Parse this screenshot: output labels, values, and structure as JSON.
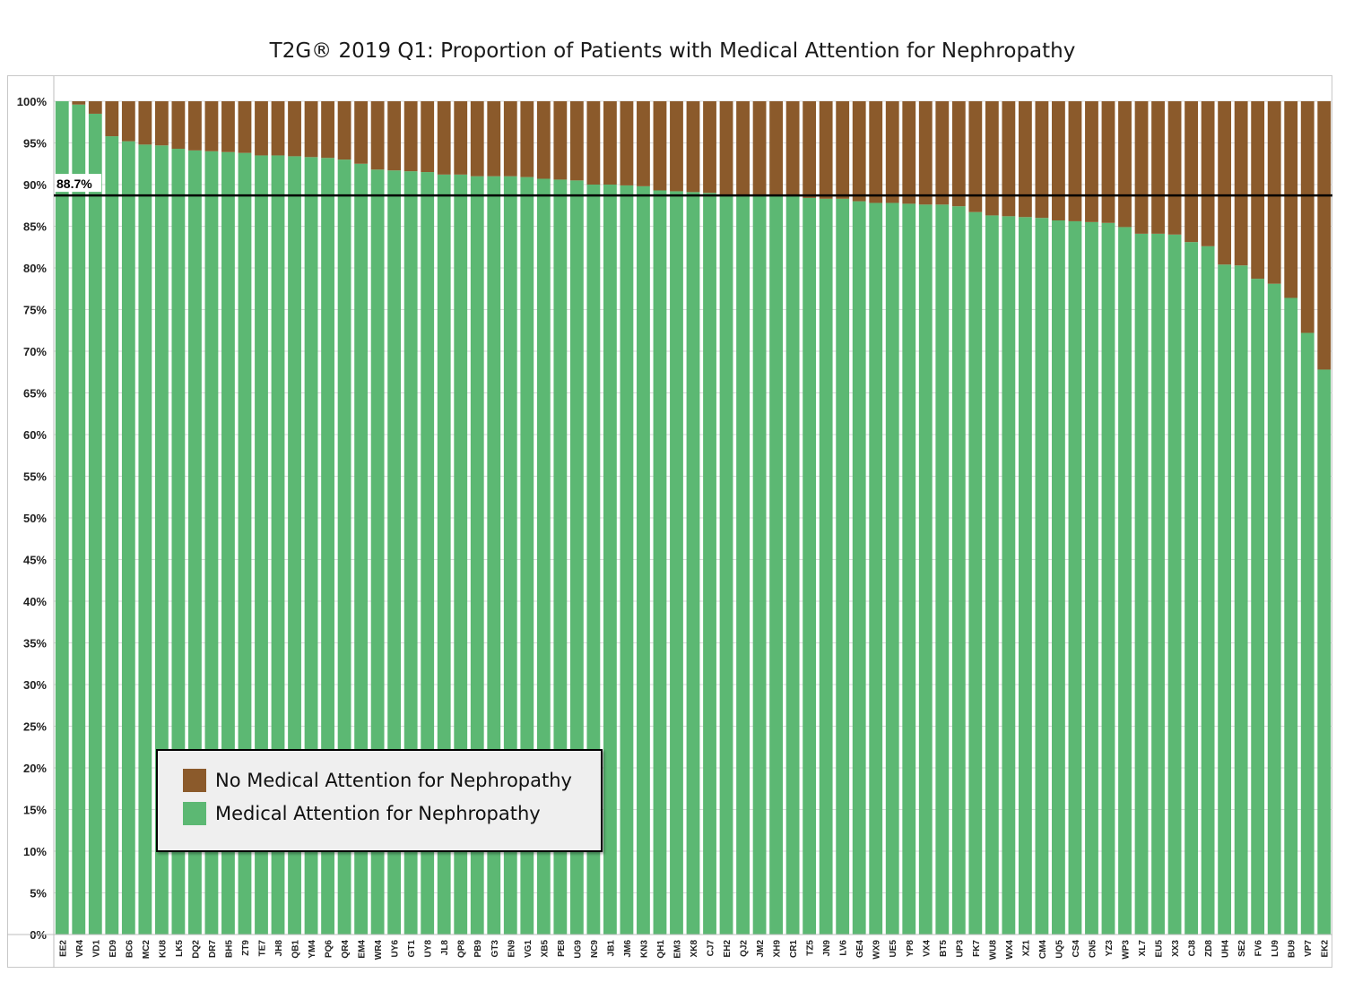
{
  "chart_data": {
    "type": "bar",
    "stacked": true,
    "title": "T2G® 2019 Q1: Proportion of Patients with Medical Attention for Nephropathy",
    "xlabel": "",
    "ylabel": "",
    "ylim": [
      0,
      100
    ],
    "y_ticks": [
      "0%",
      "5%",
      "10%",
      "15%",
      "20%",
      "25%",
      "30%",
      "35%",
      "40%",
      "45%",
      "50%",
      "55%",
      "60%",
      "65%",
      "70%",
      "75%",
      "80%",
      "85%",
      "90%",
      "95%",
      "100%"
    ],
    "grid": true,
    "legend_position": "bottom-left",
    "categories": [
      "EE2",
      "VR4",
      "VD1",
      "ED9",
      "BC6",
      "MC2",
      "KU8",
      "LK5",
      "DQ2",
      "DR7",
      "BH5",
      "ZT9",
      "TE7",
      "JH8",
      "QB1",
      "YM4",
      "PQ6",
      "QR4",
      "EM4",
      "WR4",
      "UY6",
      "GT1",
      "UY8",
      "JL8",
      "QP8",
      "PB9",
      "GT3",
      "EN9",
      "VG1",
      "XB5",
      "PE8",
      "UG9",
      "NC9",
      "JB1",
      "JM6",
      "KN3",
      "QH1",
      "EM3",
      "XK8",
      "CJ7",
      "EH2",
      "QJ2",
      "JM2",
      "XH9",
      "CR1",
      "TZ5",
      "JN9",
      "LV6",
      "GE4",
      "WX9",
      "UE5",
      "YP8",
      "VX4",
      "BT5",
      "UP3",
      "FK7",
      "WU8",
      "WX4",
      "XZ1",
      "CM4",
      "UQ5",
      "CS4",
      "CN5",
      "YZ3",
      "WP3",
      "XL7",
      "EU5",
      "XX3",
      "CJ8",
      "ZD8",
      "UH4",
      "SE2",
      "FV6",
      "LU9",
      "BU9",
      "VP7",
      "EK2"
    ],
    "series": [
      {
        "name": "Medical Attention for Nephropathy",
        "color": "#5cb873",
        "values": [
          100,
          99.6,
          98.5,
          95.8,
          95.2,
          94.8,
          94.7,
          94.3,
          94.1,
          94.0,
          93.9,
          93.8,
          93.5,
          93.5,
          93.4,
          93.3,
          93.2,
          93.0,
          92.5,
          91.8,
          91.7,
          91.6,
          91.5,
          91.2,
          91.2,
          91.0,
          91.0,
          91.0,
          90.9,
          90.7,
          90.6,
          90.5,
          90.0,
          90.0,
          89.9,
          89.8,
          89.3,
          89.2,
          89.1,
          89.0,
          88.7,
          88.7,
          88.7,
          88.6,
          88.6,
          88.4,
          88.3,
          88.3,
          88.0,
          87.8,
          87.8,
          87.7,
          87.6,
          87.6,
          87.4,
          86.7,
          86.3,
          86.2,
          86.1,
          86.0,
          85.7,
          85.6,
          85.5,
          85.4,
          84.9,
          84.1,
          84.1,
          84.0,
          83.1,
          82.6,
          80.4,
          80.3,
          78.7,
          78.1,
          76.4,
          72.2,
          67.8
        ]
      },
      {
        "name": "No Medical Attention for Nephropathy",
        "color": "#8b5a2b",
        "values": [
          0,
          0.4,
          1.5,
          4.2,
          4.8,
          5.2,
          5.3,
          5.7,
          5.9,
          6.0,
          6.1,
          6.2,
          6.5,
          6.5,
          6.6,
          6.7,
          6.8,
          7.0,
          7.5,
          8.2,
          8.3,
          8.4,
          8.5,
          8.8,
          8.8,
          9.0,
          9.0,
          9.0,
          9.1,
          9.3,
          9.4,
          9.5,
          10.0,
          10.0,
          10.1,
          10.2,
          10.7,
          10.8,
          10.9,
          11.0,
          11.3,
          11.3,
          11.3,
          11.4,
          11.4,
          11.6,
          11.7,
          11.7,
          12.0,
          12.2,
          12.2,
          12.3,
          12.4,
          12.4,
          12.6,
          13.3,
          13.7,
          13.8,
          13.9,
          14.0,
          14.3,
          14.4,
          14.5,
          14.6,
          15.1,
          15.9,
          15.9,
          16.0,
          16.9,
          17.4,
          19.6,
          19.7,
          21.3,
          21.9,
          23.6,
          27.8,
          32.2
        ]
      }
    ],
    "reference_line": {
      "value": 88.7,
      "label": "88.7%"
    },
    "legend": {
      "items": [
        {
          "label": "No Medical Attention for Nephropathy",
          "color": "#8b5a2b"
        },
        {
          "label": "Medical Attention for Nephropathy",
          "color": "#5cb873"
        }
      ]
    }
  }
}
